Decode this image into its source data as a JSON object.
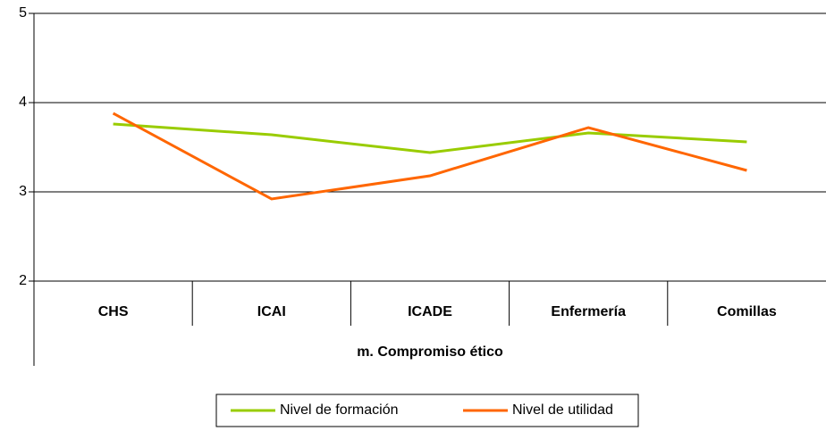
{
  "chart_data": {
    "type": "line",
    "x_label": "m. Compromiso ético",
    "categories": [
      "CHS",
      "ICAI",
      "ICADE",
      "Enfermería",
      "Comillas"
    ],
    "series": [
      {
        "name": "Nivel de formación",
        "color": "#99cc00",
        "values": [
          3.76,
          3.64,
          3.44,
          3.66,
          3.56
        ]
      },
      {
        "name": "Nivel de utilidad",
        "color": "#ff6600",
        "values": [
          3.88,
          2.92,
          3.18,
          3.72,
          3.24
        ]
      }
    ],
    "ylim": [
      2,
      5
    ],
    "yticks": [
      2,
      3,
      4,
      5
    ],
    "grid": true,
    "legend": "bottom"
  }
}
